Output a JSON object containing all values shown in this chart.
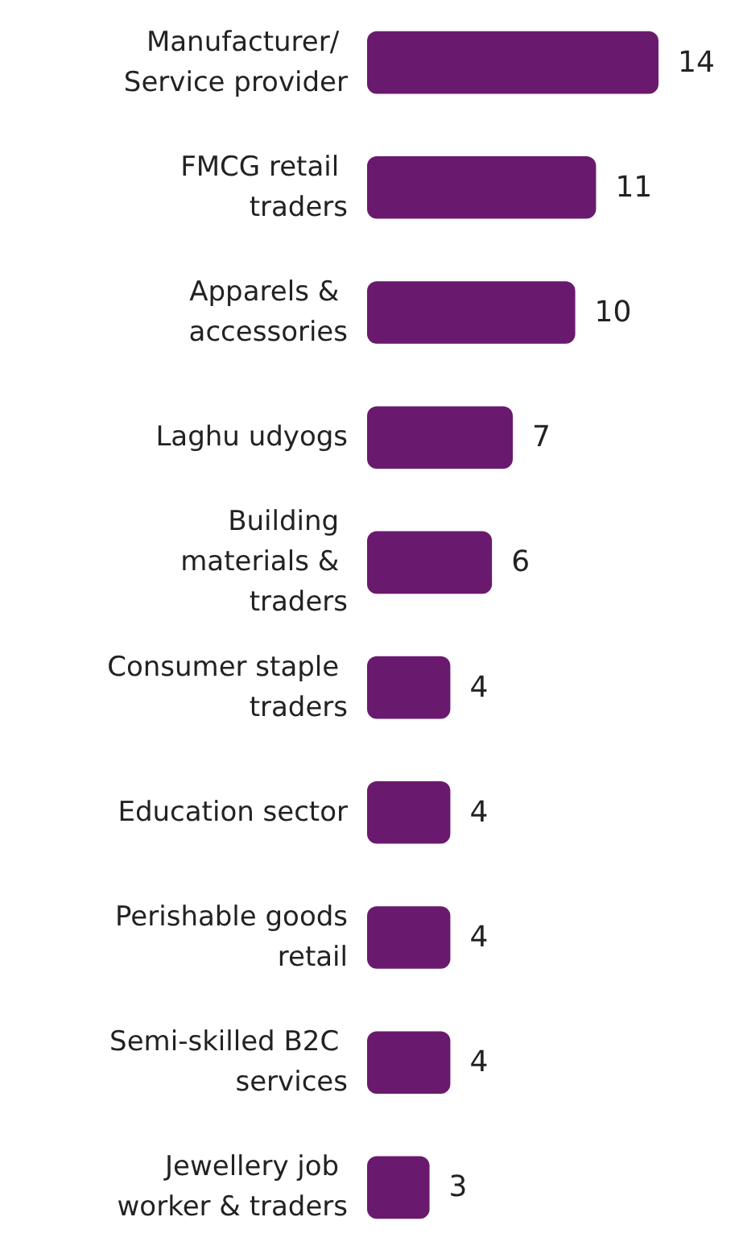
{
  "chart_data": {
    "type": "bar",
    "orientation": "horizontal",
    "data_labels": true,
    "categories": [
      "Manufacturer/ Service provider",
      "FMCG retail traders",
      "Apparels & accessories",
      "Laghu udyogs",
      "Building materials & traders",
      "Consumer staple traders",
      "Education sector",
      "Perishable goods retail",
      "Semi-skilled B2C services",
      "Jewellery job worker & traders"
    ],
    "values": [
      14,
      11,
      10,
      7,
      6,
      4,
      4,
      4,
      4,
      3
    ],
    "color": "#6a1a6e"
  }
}
